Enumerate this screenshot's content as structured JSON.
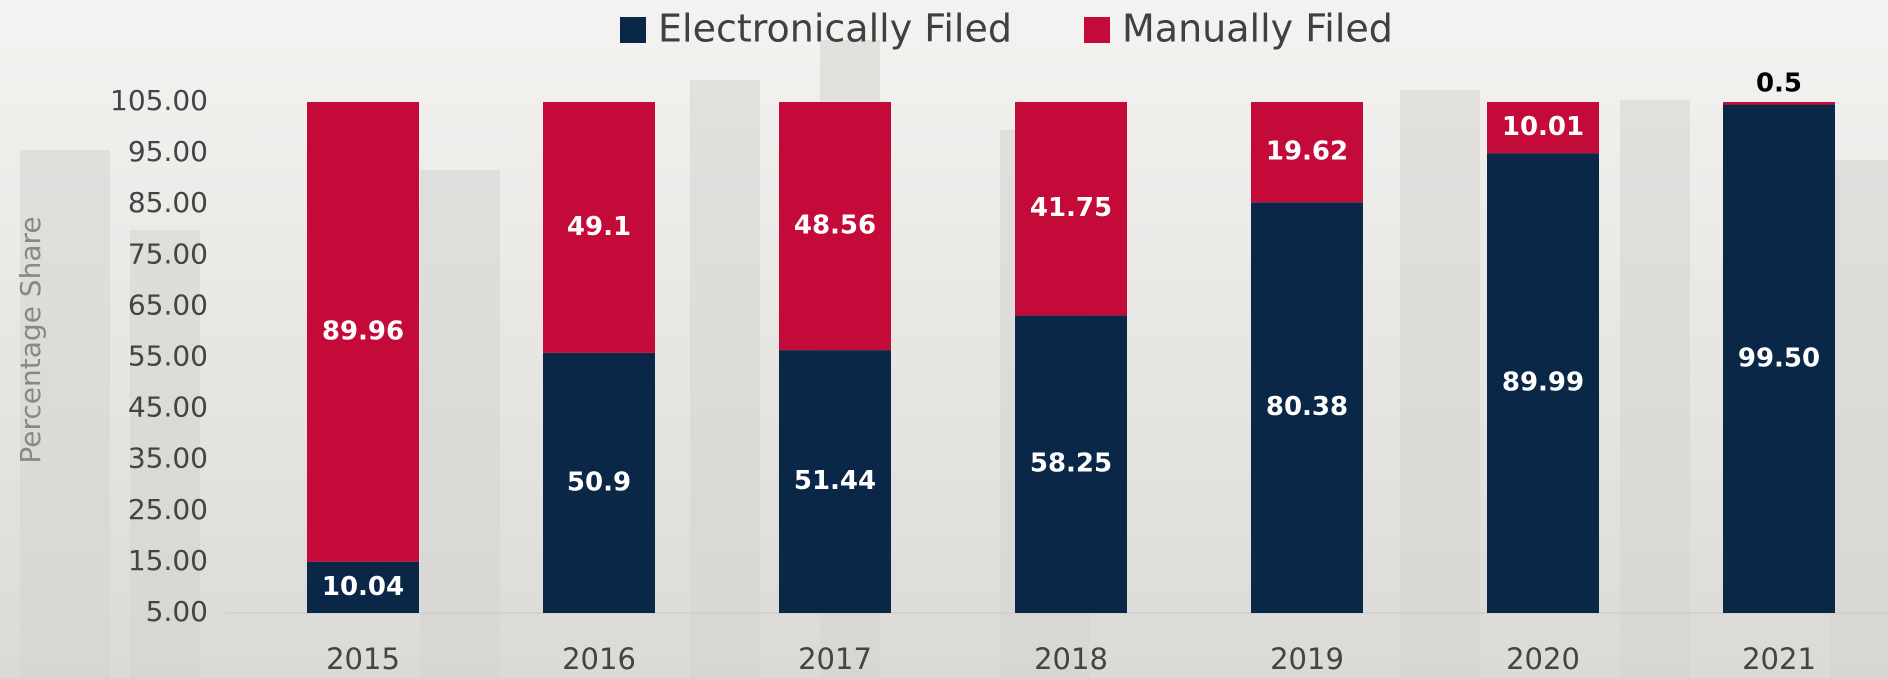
{
  "chart_data": {
    "type": "stacked_bar",
    "y_label": "Percentage Share",
    "categories": [
      "2015",
      "2016",
      "2017",
      "2018",
      "2019",
      "2020",
      "2021"
    ],
    "series": [
      {
        "name": "Electronically Filed",
        "color": "#0a2748",
        "values": [
          10.04,
          50.9,
          51.44,
          58.25,
          80.38,
          89.99,
          99.5
        ],
        "value_labels": [
          "10.04",
          "50.9",
          "51.44",
          "58.25",
          "80.38",
          "89.99",
          "99.50"
        ]
      },
      {
        "name": "Manually Filed",
        "color": "#c40a38",
        "values": [
          89.96,
          49.1,
          48.56,
          41.75,
          19.62,
          10.01,
          0.5
        ]
      }
    ],
    "ylim": [
      5,
      105
    ],
    "yticks": [
      {
        "value": 5,
        "label": "5.00"
      },
      {
        "value": 15,
        "label": "15.00"
      },
      {
        "value": 25,
        "label": "25.00"
      },
      {
        "value": 35,
        "label": "35.00"
      },
      {
        "value": 45,
        "label": "45.00"
      },
      {
        "value": 55,
        "label": "55.00"
      },
      {
        "value": 65,
        "label": "65.00"
      },
      {
        "value": 75,
        "label": "75.00"
      },
      {
        "value": 85,
        "label": "85.00"
      },
      {
        "value": 95,
        "label": "95.00"
      },
      {
        "value": 105,
        "label": "105.00"
      }
    ],
    "grid": false,
    "legend": "top"
  }
}
